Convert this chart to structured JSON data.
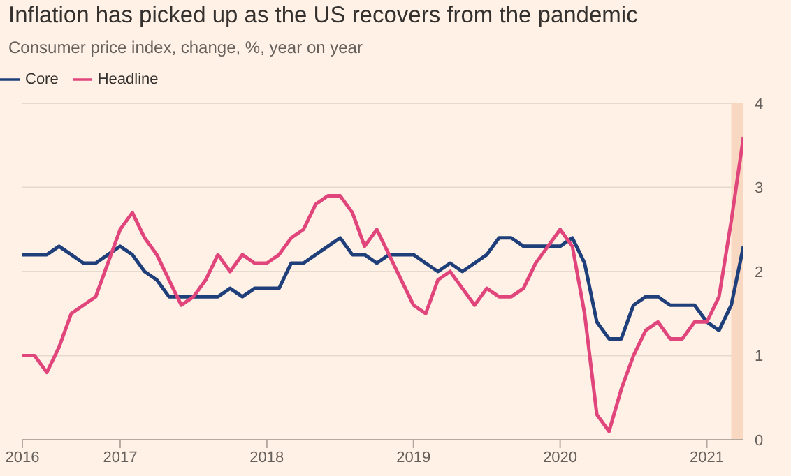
{
  "chart_data": {
    "type": "line",
    "title": "Inflation has picked up as the US recovers from the pandemic",
    "subtitle": "Consumer price index, change, %, year on year",
    "x": [
      "2016-05",
      "2016-06",
      "2016-07",
      "2016-08",
      "2016-09",
      "2016-10",
      "2016-11",
      "2016-12",
      "2017-01",
      "2017-02",
      "2017-03",
      "2017-04",
      "2017-05",
      "2017-06",
      "2017-07",
      "2017-08",
      "2017-09",
      "2017-10",
      "2017-11",
      "2017-12",
      "2018-01",
      "2018-02",
      "2018-03",
      "2018-04",
      "2018-05",
      "2018-06",
      "2018-07",
      "2018-08",
      "2018-09",
      "2018-10",
      "2018-11",
      "2018-12",
      "2019-01",
      "2019-02",
      "2019-03",
      "2019-04",
      "2019-05",
      "2019-06",
      "2019-07",
      "2019-08",
      "2019-09",
      "2019-10",
      "2019-11",
      "2019-12",
      "2020-01",
      "2020-02",
      "2020-03",
      "2020-04",
      "2020-05",
      "2020-06",
      "2020-07",
      "2020-08",
      "2020-09",
      "2020-10",
      "2020-11",
      "2020-12",
      "2021-01",
      "2021-02",
      "2021-03",
      "2021-04"
    ],
    "series": [
      {
        "name": "Core",
        "color": "#1f3f7a",
        "values": [
          2.2,
          2.2,
          2.2,
          2.3,
          2.2,
          2.1,
          2.1,
          2.2,
          2.3,
          2.2,
          2.0,
          1.9,
          1.7,
          1.7,
          1.7,
          1.7,
          1.7,
          1.8,
          1.7,
          1.8,
          1.8,
          1.8,
          2.1,
          2.1,
          2.2,
          2.3,
          2.4,
          2.2,
          2.2,
          2.1,
          2.2,
          2.2,
          2.2,
          2.1,
          2.0,
          2.1,
          2.0,
          2.1,
          2.2,
          2.4,
          2.4,
          2.3,
          2.3,
          2.3,
          2.3,
          2.4,
          2.1,
          1.4,
          1.2,
          1.2,
          1.6,
          1.7,
          1.7,
          1.6,
          1.6,
          1.6,
          1.4,
          1.3,
          1.6,
          2.3
        ]
      },
      {
        "name": "Headline",
        "color": "#e0457b",
        "values": [
          1.0,
          1.0,
          0.8,
          1.1,
          1.5,
          1.6,
          1.7,
          2.1,
          2.5,
          2.7,
          2.4,
          2.2,
          1.9,
          1.6,
          1.7,
          1.9,
          2.2,
          2.0,
          2.2,
          2.1,
          2.1,
          2.2,
          2.4,
          2.5,
          2.8,
          2.9,
          2.9,
          2.7,
          2.3,
          2.5,
          2.2,
          1.9,
          1.6,
          1.5,
          1.9,
          2.0,
          1.8,
          1.6,
          1.8,
          1.7,
          1.7,
          1.8,
          2.1,
          2.3,
          2.5,
          2.3,
          1.5,
          0.3,
          0.1,
          0.6,
          1.0,
          1.3,
          1.4,
          1.2,
          1.2,
          1.4,
          1.4,
          1.7,
          2.6,
          3.6
        ]
      }
    ],
    "xlim": [
      "2016-05",
      "2021-04"
    ],
    "xticks": [
      {
        "value": "2016-05",
        "label": "2016"
      },
      {
        "value": "2017-01",
        "label": "2017"
      },
      {
        "value": "2018-01",
        "label": "2018"
      },
      {
        "value": "2019-01",
        "label": "2019"
      },
      {
        "value": "2020-01",
        "label": "2020"
      },
      {
        "value": "2021-01",
        "label": "2021"
      }
    ],
    "ylim": [
      0,
      4
    ],
    "yticks": [
      0,
      1,
      2,
      3,
      4
    ],
    "bands": [
      {
        "axis": "x",
        "from": "2021-03",
        "to": "2021-04",
        "color": "#f9d8c2"
      }
    ],
    "grid": "y",
    "legend": "top left",
    "marker": "none",
    "line_style": "solid"
  }
}
